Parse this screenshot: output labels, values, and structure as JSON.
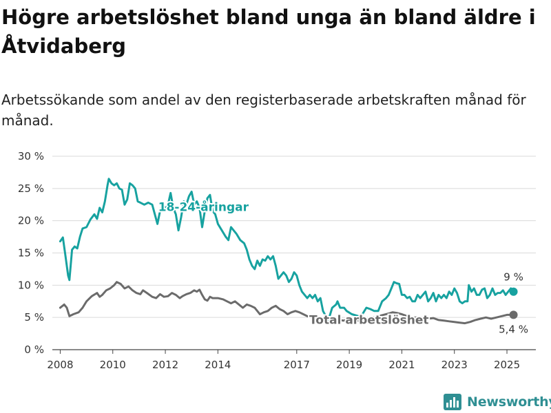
{
  "title": "Högre arbetslöshet bland unga än bland äldre i Åtvidaberg",
  "subtitle": "Arbetssökande som andel av den registerbaserade arbetskraften månad för månad.",
  "brand": {
    "name": "Newsworthy"
  },
  "colors": {
    "youth": "#17a2a0",
    "total": "#6b6b6b",
    "grid": "#d9d9d9",
    "axis": "#444444",
    "brand": "#2f8f93"
  },
  "chart_data": {
    "type": "line",
    "title": "Högre arbetslöshet bland unga än bland äldre i Åtvidaberg",
    "subtitle": "Arbetssökande som andel av den registerbaserade arbetskraften månad för månad.",
    "xlabel": "",
    "ylabel": "",
    "xlim": [
      2007.7,
      2026.1
    ],
    "ylim": [
      0,
      30
    ],
    "grid": true,
    "legend": "inline labels",
    "y_ticks": [
      {
        "value": 0,
        "label": "0 %"
      },
      {
        "value": 5,
        "label": "5 %"
      },
      {
        "value": 10,
        "label": "10 %"
      },
      {
        "value": 15,
        "label": "15 %"
      },
      {
        "value": 20,
        "label": "20 %"
      },
      {
        "value": 25,
        "label": "25 %"
      },
      {
        "value": 30,
        "label": "30 %"
      }
    ],
    "x_ticks": [
      {
        "value": 2008,
        "label": "2008"
      },
      {
        "value": 2010,
        "label": "2010"
      },
      {
        "value": 2012,
        "label": "2012"
      },
      {
        "value": 2014,
        "label": "2014"
      },
      {
        "value": 2017,
        "label": "2017"
      },
      {
        "value": 2019,
        "label": "2019"
      },
      {
        "value": 2021,
        "label": "2021"
      },
      {
        "value": 2023,
        "label": "2023"
      },
      {
        "value": 2025,
        "label": "2025"
      }
    ],
    "series": [
      {
        "name": "18-24-åringar",
        "color": "#17a2a0",
        "end_label": "9 %",
        "points": [
          [
            2008.0,
            16.8
          ],
          [
            2008.1,
            17.4
          ],
          [
            2008.2,
            14.5
          ],
          [
            2008.3,
            11.5
          ],
          [
            2008.35,
            10.8
          ],
          [
            2008.45,
            15.5
          ],
          [
            2008.55,
            16.0
          ],
          [
            2008.65,
            15.7
          ],
          [
            2008.75,
            17.5
          ],
          [
            2008.85,
            18.8
          ],
          [
            2009.0,
            19.0
          ],
          [
            2009.15,
            20.2
          ],
          [
            2009.3,
            21.0
          ],
          [
            2009.4,
            20.3
          ],
          [
            2009.5,
            22.0
          ],
          [
            2009.6,
            21.3
          ],
          [
            2009.7,
            23.0
          ],
          [
            2009.8,
            25.5
          ],
          [
            2009.85,
            26.5
          ],
          [
            2009.95,
            25.8
          ],
          [
            2010.05,
            25.5
          ],
          [
            2010.15,
            25.8
          ],
          [
            2010.25,
            25.0
          ],
          [
            2010.35,
            24.8
          ],
          [
            2010.45,
            22.5
          ],
          [
            2010.55,
            23.3
          ],
          [
            2010.65,
            25.8
          ],
          [
            2010.75,
            25.5
          ],
          [
            2010.85,
            25.0
          ],
          [
            2010.95,
            23.0
          ],
          [
            2011.05,
            22.8
          ],
          [
            2011.2,
            22.5
          ],
          [
            2011.35,
            22.8
          ],
          [
            2011.5,
            22.5
          ],
          [
            2011.6,
            21.0
          ],
          [
            2011.7,
            19.5
          ],
          [
            2011.8,
            21.5
          ],
          [
            2011.9,
            22.8
          ],
          [
            2012.0,
            21.8
          ],
          [
            2012.1,
            22.5
          ],
          [
            2012.2,
            24.3
          ],
          [
            2012.3,
            22.0
          ],
          [
            2012.4,
            21.0
          ],
          [
            2012.5,
            18.5
          ],
          [
            2012.6,
            20.5
          ],
          [
            2012.7,
            23.0
          ],
          [
            2012.8,
            22.5
          ],
          [
            2012.9,
            23.8
          ],
          [
            2013.0,
            24.5
          ],
          [
            2013.1,
            22.5
          ],
          [
            2013.2,
            23.0
          ],
          [
            2013.3,
            22.0
          ],
          [
            2013.4,
            19.0
          ],
          [
            2013.5,
            21.5
          ],
          [
            2013.6,
            23.5
          ],
          [
            2013.7,
            24.0
          ],
          [
            2013.8,
            21.5
          ],
          [
            2013.9,
            21.0
          ],
          [
            2014.0,
            19.5
          ],
          [
            2014.15,
            18.5
          ],
          [
            2014.3,
            17.5
          ],
          [
            2014.4,
            17.0
          ],
          [
            2014.5,
            19.0
          ],
          [
            2014.6,
            18.5
          ],
          [
            2014.7,
            18.0
          ],
          [
            2014.85,
            17.0
          ],
          [
            2015.0,
            16.5
          ],
          [
            2015.1,
            15.5
          ],
          [
            2015.2,
            14.0
          ],
          [
            2015.3,
            13.0
          ],
          [
            2015.4,
            12.5
          ],
          [
            2015.5,
            13.8
          ],
          [
            2015.6,
            13.0
          ],
          [
            2015.7,
            14.0
          ],
          [
            2015.8,
            13.8
          ],
          [
            2015.9,
            14.5
          ],
          [
            2016.0,
            14.0
          ],
          [
            2016.1,
            14.5
          ],
          [
            2016.2,
            13.0
          ],
          [
            2016.3,
            11.0
          ],
          [
            2016.4,
            11.5
          ],
          [
            2016.5,
            12.0
          ],
          [
            2016.6,
            11.5
          ],
          [
            2016.7,
            10.5
          ],
          [
            2016.8,
            11.0
          ],
          [
            2016.9,
            12.0
          ],
          [
            2017.0,
            11.5
          ],
          [
            2017.1,
            10.0
          ],
          [
            2017.2,
            9.0
          ],
          [
            2017.3,
            8.5
          ],
          [
            2017.4,
            8.0
          ],
          [
            2017.5,
            8.5
          ],
          [
            2017.6,
            8.0
          ],
          [
            2017.7,
            8.5
          ],
          [
            2017.8,
            7.5
          ],
          [
            2017.9,
            8.0
          ],
          [
            2018.0,
            6.0
          ],
          [
            2018.2,
            4.5
          ],
          [
            2018.35,
            6.5
          ],
          [
            2018.5,
            7.0
          ],
          [
            2018.55,
            7.5
          ],
          [
            2018.65,
            6.5
          ],
          [
            2018.8,
            6.5
          ],
          [
            2018.9,
            6.0
          ],
          [
            2019.1,
            5.5
          ],
          [
            2019.35,
            5.2
          ],
          [
            2019.5,
            5.5
          ],
          [
            2019.65,
            6.5
          ],
          [
            2019.8,
            6.3
          ],
          [
            2019.95,
            6.0
          ],
          [
            2020.1,
            6.0
          ],
          [
            2020.25,
            7.5
          ],
          [
            2020.4,
            8.0
          ],
          [
            2020.5,
            8.5
          ],
          [
            2020.6,
            9.5
          ],
          [
            2020.7,
            10.5
          ],
          [
            2020.8,
            10.3
          ],
          [
            2020.9,
            10.2
          ],
          [
            2021.0,
            8.5
          ],
          [
            2021.1,
            8.5
          ],
          [
            2021.2,
            8.0
          ],
          [
            2021.3,
            8.2
          ],
          [
            2021.4,
            7.5
          ],
          [
            2021.5,
            7.5
          ],
          [
            2021.6,
            8.5
          ],
          [
            2021.7,
            8.0
          ],
          [
            2021.8,
            8.5
          ],
          [
            2021.9,
            9.0
          ],
          [
            2022.0,
            7.5
          ],
          [
            2022.1,
            8.0
          ],
          [
            2022.2,
            8.8
          ],
          [
            2022.3,
            7.5
          ],
          [
            2022.4,
            8.5
          ],
          [
            2022.5,
            8.0
          ],
          [
            2022.6,
            8.5
          ],
          [
            2022.7,
            8.0
          ],
          [
            2022.8,
            9.0
          ],
          [
            2022.9,
            8.5
          ],
          [
            2023.0,
            9.5
          ],
          [
            2023.1,
            8.8
          ],
          [
            2023.2,
            7.5
          ],
          [
            2023.3,
            7.2
          ],
          [
            2023.4,
            7.5
          ],
          [
            2023.5,
            7.5
          ],
          [
            2023.55,
            10.0
          ],
          [
            2023.65,
            9.0
          ],
          [
            2023.75,
            9.5
          ],
          [
            2023.85,
            8.5
          ],
          [
            2023.95,
            8.5
          ],
          [
            2024.05,
            9.3
          ],
          [
            2024.15,
            9.5
          ],
          [
            2024.25,
            8.0
          ],
          [
            2024.35,
            8.5
          ],
          [
            2024.45,
            9.5
          ],
          [
            2024.55,
            8.5
          ],
          [
            2024.65,
            8.8
          ],
          [
            2024.75,
            8.8
          ],
          [
            2024.85,
            9.2
          ],
          [
            2024.95,
            8.5
          ],
          [
            2025.05,
            9.0
          ],
          [
            2025.15,
            9.5
          ],
          [
            2025.25,
            9.0
          ]
        ]
      },
      {
        "name": "Total arbetslöshet",
        "color": "#6b6b6b",
        "end_label": "5,4 %",
        "points": [
          [
            2008.0,
            6.5
          ],
          [
            2008.15,
            7.0
          ],
          [
            2008.25,
            6.5
          ],
          [
            2008.35,
            5.2
          ],
          [
            2008.5,
            5.5
          ],
          [
            2008.7,
            5.8
          ],
          [
            2008.85,
            6.5
          ],
          [
            2009.0,
            7.5
          ],
          [
            2009.2,
            8.3
          ],
          [
            2009.4,
            8.8
          ],
          [
            2009.5,
            8.2
          ],
          [
            2009.6,
            8.5
          ],
          [
            2009.75,
            9.2
          ],
          [
            2009.9,
            9.5
          ],
          [
            2010.05,
            10.0
          ],
          [
            2010.15,
            10.5
          ],
          [
            2010.3,
            10.2
          ],
          [
            2010.45,
            9.5
          ],
          [
            2010.6,
            9.8
          ],
          [
            2010.75,
            9.2
          ],
          [
            2010.9,
            8.8
          ],
          [
            2011.05,
            8.6
          ],
          [
            2011.15,
            9.2
          ],
          [
            2011.3,
            8.8
          ],
          [
            2011.5,
            8.2
          ],
          [
            2011.65,
            8.0
          ],
          [
            2011.8,
            8.6
          ],
          [
            2011.95,
            8.2
          ],
          [
            2012.1,
            8.3
          ],
          [
            2012.25,
            8.8
          ],
          [
            2012.4,
            8.5
          ],
          [
            2012.55,
            8.0
          ],
          [
            2012.65,
            8.3
          ],
          [
            2012.8,
            8.6
          ],
          [
            2012.95,
            8.8
          ],
          [
            2013.1,
            9.2
          ],
          [
            2013.2,
            9.0
          ],
          [
            2013.3,
            9.3
          ],
          [
            2013.4,
            8.5
          ],
          [
            2013.5,
            7.8
          ],
          [
            2013.6,
            7.6
          ],
          [
            2013.7,
            8.2
          ],
          [
            2013.8,
            8.0
          ],
          [
            2014.0,
            8.0
          ],
          [
            2014.2,
            7.8
          ],
          [
            2014.35,
            7.5
          ],
          [
            2014.5,
            7.2
          ],
          [
            2014.65,
            7.5
          ],
          [
            2014.8,
            7.0
          ],
          [
            2014.95,
            6.5
          ],
          [
            2015.1,
            7.0
          ],
          [
            2015.25,
            6.8
          ],
          [
            2015.4,
            6.5
          ],
          [
            2015.5,
            6.0
          ],
          [
            2015.6,
            5.5
          ],
          [
            2015.75,
            5.8
          ],
          [
            2015.9,
            6.0
          ],
          [
            2016.05,
            6.5
          ],
          [
            2016.2,
            6.8
          ],
          [
            2016.35,
            6.3
          ],
          [
            2016.5,
            6.0
          ],
          [
            2016.65,
            5.5
          ],
          [
            2016.8,
            5.8
          ],
          [
            2016.95,
            6.0
          ],
          [
            2017.1,
            5.8
          ],
          [
            2017.25,
            5.5
          ],
          [
            2017.4,
            5.2
          ],
          [
            2017.55,
            5.0
          ],
          [
            2017.7,
            5.2
          ],
          [
            2017.85,
            5.0
          ],
          [
            2018.0,
            4.8
          ],
          [
            2018.2,
            4.9
          ],
          [
            2018.5,
            4.6
          ],
          [
            2018.8,
            4.5
          ],
          [
            2019.0,
            4.8
          ],
          [
            2019.3,
            4.5
          ],
          [
            2019.6,
            4.7
          ],
          [
            2019.9,
            5.0
          ],
          [
            2020.1,
            5.2
          ],
          [
            2020.3,
            5.4
          ],
          [
            2020.5,
            5.6
          ],
          [
            2020.65,
            5.8
          ],
          [
            2020.8,
            5.7
          ],
          [
            2021.0,
            5.5
          ],
          [
            2021.2,
            5.2
          ],
          [
            2021.4,
            5.0
          ],
          [
            2021.6,
            5.0
          ],
          [
            2021.8,
            5.0
          ],
          [
            2022.0,
            4.8
          ],
          [
            2022.2,
            4.9
          ],
          [
            2022.4,
            4.6
          ],
          [
            2022.6,
            4.5
          ],
          [
            2022.8,
            4.4
          ],
          [
            2023.0,
            4.3
          ],
          [
            2023.2,
            4.2
          ],
          [
            2023.4,
            4.1
          ],
          [
            2023.6,
            4.3
          ],
          [
            2023.8,
            4.6
          ],
          [
            2024.0,
            4.8
          ],
          [
            2024.2,
            5.0
          ],
          [
            2024.4,
            4.8
          ],
          [
            2024.6,
            5.0
          ],
          [
            2024.8,
            5.2
          ],
          [
            2025.0,
            5.4
          ],
          [
            2025.25,
            5.4
          ]
        ]
      }
    ],
    "annotations": [
      {
        "text": "18-24-åringar",
        "series": "18-24-åringar",
        "x": 2013.45,
        "y": 21.5
      },
      {
        "text": "Total arbetslöshet",
        "series": "Total arbetslöshet",
        "x": 2019.75,
        "y": 4.0
      }
    ]
  }
}
